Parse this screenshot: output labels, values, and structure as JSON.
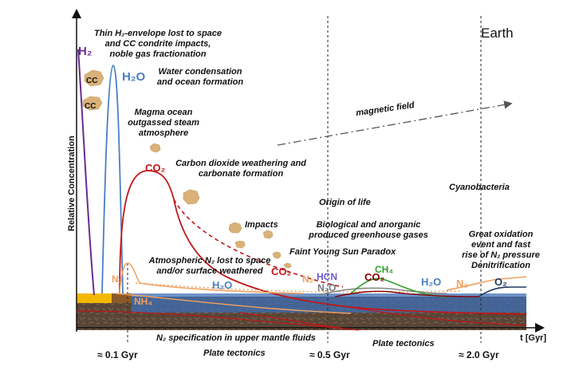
{
  "title": "Earth",
  "axes": {
    "ylabel": "Relative Concentration",
    "xlabel": "t [Gyr]",
    "ticks": [
      "≈ 0.1 Gyr",
      "≈ 0.5 Gyr",
      "≈ 2.0 Gyr"
    ]
  },
  "events": {
    "h2_envelope": [
      "Thin H₂-envelope lost to space",
      "and CC condrite impacts,",
      "noble gas fractionation"
    ],
    "water": [
      "Water condensation",
      "and ocean formation"
    ],
    "magma": [
      "Magma ocean",
      "outgassed steam",
      "atmosphere"
    ],
    "carbon": [
      "Carbon dioxide weathering and",
      "carbonate formation"
    ],
    "magnetic": "magnetic field",
    "origin": "Origin of life",
    "cyano": "Cyanobacteria",
    "impacts": "Impacts",
    "greenhouse": [
      "Biological and anorganic",
      "produced greenhouse gases"
    ],
    "faint": "Faint Young Sun Paradox",
    "oxidation": [
      "Great oxidation",
      "event and fast",
      "rise of N₂ pressure",
      "Denitrification"
    ],
    "n2_lost": [
      "Atmospheric N₂ lost to space",
      "and/or surface weathered"
    ],
    "n2_spec": "N₂ specification in upper mantle fluids",
    "plate1": "Plate tectonics",
    "plate2": "Plate tectonics"
  },
  "species": {
    "h2": "H₂",
    "h2o_1": "H₂O",
    "cc1": "CC",
    "cc2": "CC",
    "co2_1": "CO₂",
    "co2_2": "CO₂",
    "co2_3": "CO₂",
    "n2_1": "N₂",
    "n2_2": "N₂",
    "n2_3": "N₂",
    "nh4": "NH₄",
    "h2o_2": "H₂O",
    "hcn": "HCN",
    "n2o": "N₂O",
    "ch4": "CH₄",
    "h2o_3": "H₂O",
    "o2": "O₂"
  },
  "colors": {
    "h2": "#6a2c91",
    "h2o": "#4a7fc1",
    "co2": "#c0171b",
    "n2": "#f0a060",
    "ch4": "#2ca02c",
    "o2": "#1f3864",
    "ocean": "#3d6fb5",
    "crust": "#5a4636",
    "magma": "#f2b700",
    "rock": "#d9b27a"
  }
}
